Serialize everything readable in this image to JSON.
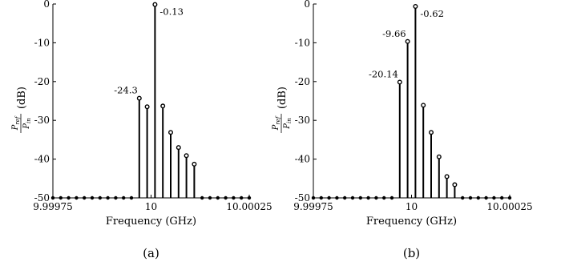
{
  "chart_data": [
    {
      "type": "stem",
      "panel_label": "(a)",
      "xlabel": "Frequency (GHz)",
      "ylabel_prefix": "",
      "ylabel_unit": "(dB)",
      "ylabel_fraction": {
        "numerator": "P",
        "numerator_sub": "ref",
        "denominator": "P",
        "denominator_sub": "in"
      },
      "xlim": [
        9.99975,
        10.00025
      ],
      "ylim": [
        -50,
        0
      ],
      "xticks": [
        {
          "value": 9.99975,
          "label": "9.99975"
        },
        {
          "value": 10.0,
          "label": "10"
        },
        {
          "value": 10.00025,
          "label": "10.00025"
        }
      ],
      "yticks": [
        {
          "value": 0,
          "label": "0"
        },
        {
          "value": -10,
          "label": "-10"
        },
        {
          "value": -20,
          "label": "-20"
        },
        {
          "value": -30,
          "label": "-30"
        },
        {
          "value": -40,
          "label": "-40"
        },
        {
          "value": -50,
          "label": "-50"
        }
      ],
      "x": [
        9.99975,
        9.99977,
        9.99979,
        9.99981,
        9.99983,
        9.99985,
        9.99987,
        9.99989,
        9.99991,
        9.99993,
        9.99995,
        9.99997,
        9.99999,
        10.00001,
        10.00003,
        10.00005,
        10.00007,
        10.00009,
        10.00011,
        10.00013,
        10.00015,
        10.00017,
        10.00019,
        10.00021,
        10.00023,
        10.00025
      ],
      "y": [
        -50,
        -50,
        -50,
        -50,
        -50,
        -50,
        -50,
        -50,
        -50,
        -50,
        -50,
        -50,
        -50,
        -50,
        -50,
        -50,
        -50,
        -50,
        -50,
        -50,
        -50,
        -50,
        -50,
        -50,
        -50,
        -50
      ],
      "stems": [
        {
          "x": 9.99997,
          "y": -24.3
        },
        {
          "x": 9.99999,
          "y": -26.5
        },
        {
          "x": 10.00001,
          "y": -0.13
        },
        {
          "x": 10.00003,
          "y": -26.3
        },
        {
          "x": 10.00005,
          "y": -33.1
        },
        {
          "x": 10.00007,
          "y": -37.0
        },
        {
          "x": 10.00009,
          "y": -39.1
        },
        {
          "x": 10.00011,
          "y": -41.3
        }
      ],
      "annotations": [
        {
          "x": 9.99997,
          "y": -24.3,
          "text": "-24.3",
          "anchor": "left"
        },
        {
          "x": 10.00001,
          "y": -0.13,
          "text": "-0.13",
          "anchor": "right"
        }
      ]
    },
    {
      "type": "stem",
      "panel_label": "(b)",
      "xlabel": "Frequency (GHz)",
      "ylabel_unit": "(dB)",
      "ylabel_fraction": {
        "numerator": "P",
        "numerator_sub": "ref",
        "denominator": "P",
        "denominator_sub": "in"
      },
      "xlim": [
        9.99975,
        10.00025
      ],
      "ylim": [
        -50,
        0
      ],
      "xticks": [
        {
          "value": 9.99975,
          "label": "9.99975"
        },
        {
          "value": 10.0,
          "label": "10"
        },
        {
          "value": 10.00025,
          "label": "10.00025"
        }
      ],
      "yticks": [
        {
          "value": 0,
          "label": "0"
        },
        {
          "value": -10,
          "label": "-10"
        },
        {
          "value": -20,
          "label": "-20"
        },
        {
          "value": -30,
          "label": "-30"
        },
        {
          "value": -40,
          "label": "-40"
        },
        {
          "value": -50,
          "label": "-50"
        }
      ],
      "stems": [
        {
          "x": 9.99997,
          "y": -20.14
        },
        {
          "x": 9.99999,
          "y": -9.66
        },
        {
          "x": 10.00001,
          "y": -0.62
        },
        {
          "x": 10.00003,
          "y": -26.1
        },
        {
          "x": 10.00005,
          "y": -33.1
        },
        {
          "x": 10.00007,
          "y": -39.4
        },
        {
          "x": 10.00009,
          "y": -44.5
        },
        {
          "x": 10.00011,
          "y": -46.6
        }
      ],
      "annotations": [
        {
          "x": 9.99997,
          "y": -20.14,
          "text": "-20.14",
          "anchor": "left"
        },
        {
          "x": 9.99999,
          "y": -9.66,
          "text": "-9.66",
          "anchor": "left"
        },
        {
          "x": 10.00001,
          "y": -0.62,
          "text": "-0.62",
          "anchor": "right"
        }
      ]
    }
  ]
}
